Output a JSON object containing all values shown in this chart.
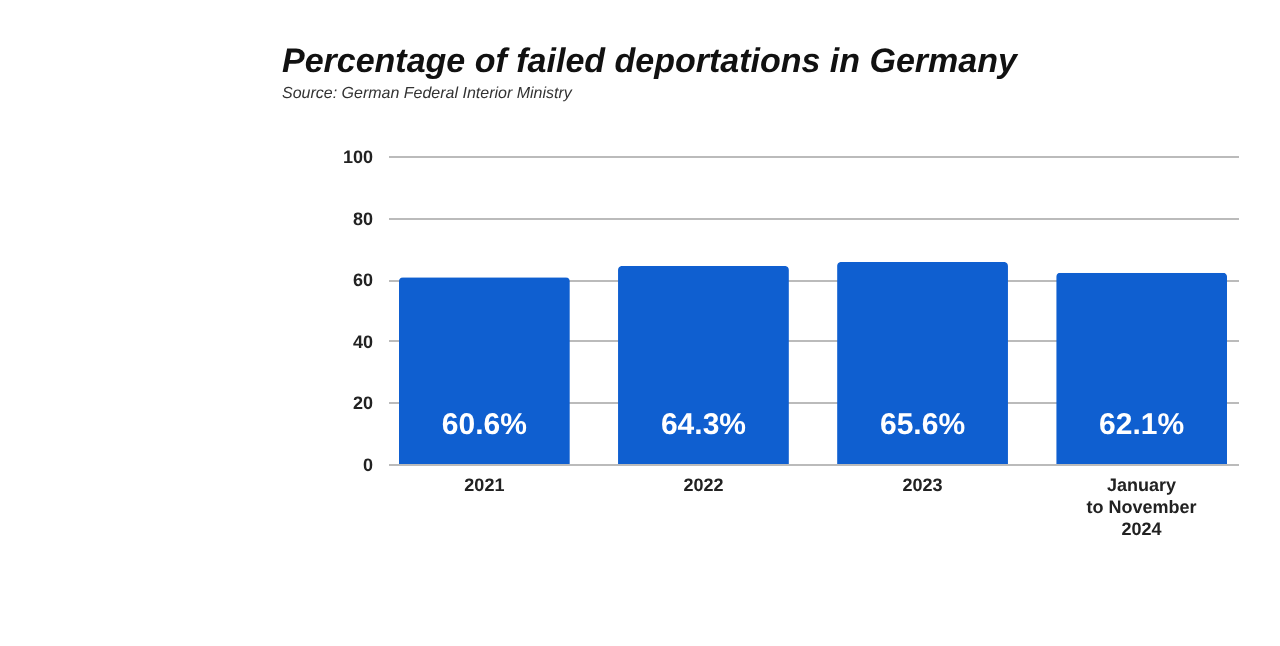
{
  "chart_data": {
    "type": "bar",
    "title": "Percentage of failed deportations in Germany",
    "annotations": [
      "Source: German Federal Interior Ministry"
    ],
    "categories": [
      "2021",
      "2022",
      "2023",
      "January\nto November\n2024"
    ],
    "values": [
      60.6,
      64.3,
      65.6,
      62.1
    ],
    "color": "#0f5fd0",
    "value_labels": [
      "60.6%",
      "64.3%",
      "65.6%",
      "62.1%"
    ],
    "ylim": [
      0,
      100
    ],
    "yticks": [
      0,
      20,
      40,
      60,
      80,
      100
    ],
    "grid": "y"
  }
}
